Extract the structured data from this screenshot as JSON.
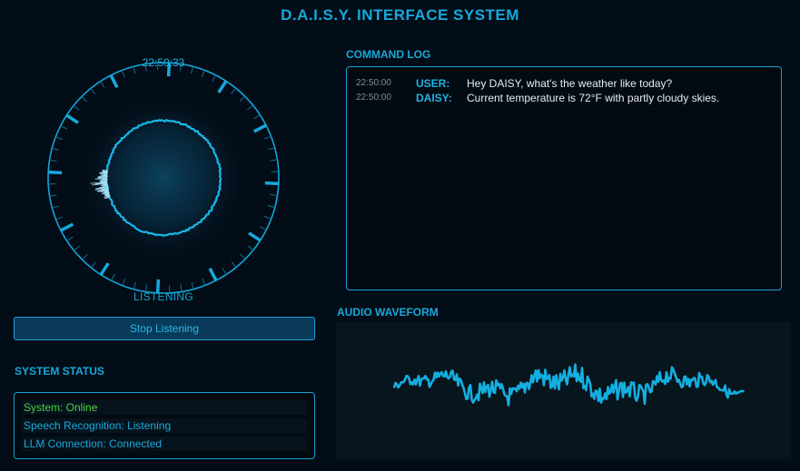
{
  "app": {
    "title": "D.A.I.S.Y. INTERFACE SYSTEM"
  },
  "dial": {
    "time": "22:50:33",
    "state_label": "LISTENING"
  },
  "controls": {
    "stop_label": "Stop Listening"
  },
  "system_status": {
    "heading": "SYSTEM STATUS",
    "items": [
      {
        "text": "System: Online",
        "color": "#4cd13e"
      },
      {
        "text": "Speech Recognition: Listening",
        "color": "#19a9da"
      },
      {
        "text": "LLM Connection: Connected",
        "color": "#19a9da"
      }
    ]
  },
  "command_log": {
    "heading": "COMMAND LOG",
    "entries": [
      {
        "time": "22:50:00",
        "speaker": "USER:",
        "message": "Hey DAISY, what's the weather like today?"
      },
      {
        "time": "22:50:00",
        "speaker": "DAISY:",
        "message": "Current temperature is 72°F with partly cloudy skies."
      }
    ]
  },
  "waveform": {
    "heading": "AUDIO WAVEFORM"
  },
  "colors": {
    "accent": "#12b0e0",
    "background": "#030d17",
    "online": "#4cd13e"
  }
}
